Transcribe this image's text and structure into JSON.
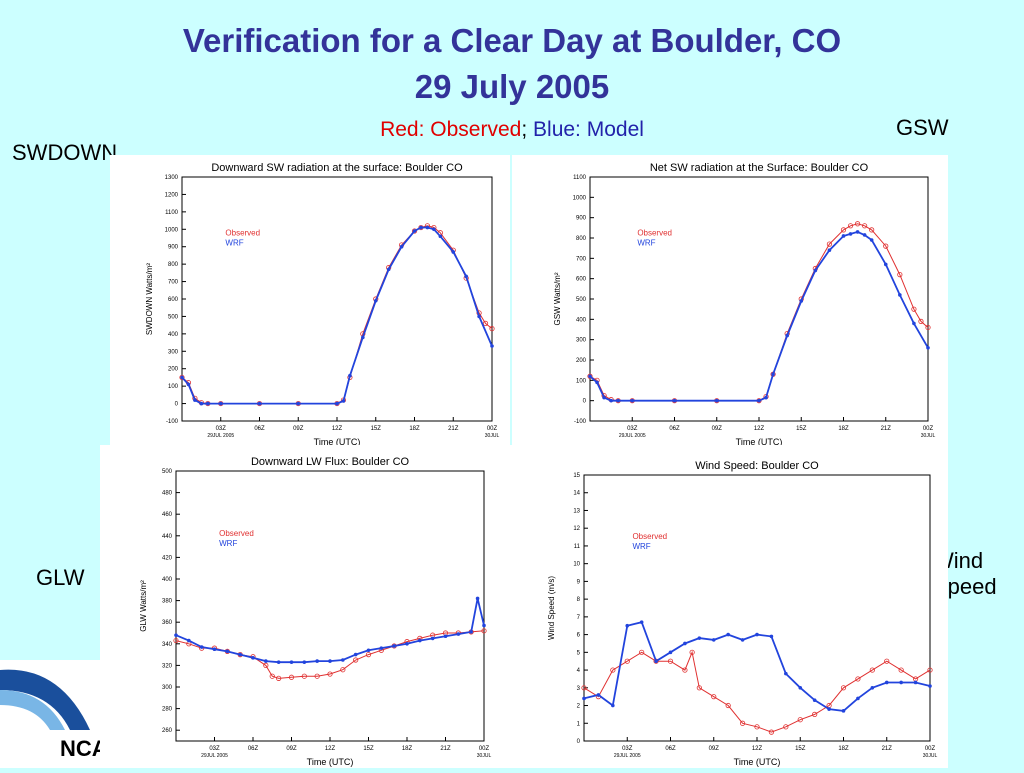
{
  "slide": {
    "title_line1": "Verification for a Clear Day at Boulder, CO",
    "title_line2": "29 July 2005",
    "legend_red": "Red: Observed",
    "legend_sep": ";",
    "legend_blue": "Blue: Model",
    "label_swdown": "SWDOWN",
    "label_gsw": "GSW",
    "label_glw": "GLW",
    "label_wind_1": "Wind",
    "label_wind_2": "Speed",
    "logo_text": "NCA"
  },
  "colors": {
    "observed": "#e03030",
    "model": "#2244dd",
    "title": "#333399",
    "background": "#ccffff"
  },
  "chart_data": [
    {
      "type": "line",
      "title": "Downward SW radiation at the surface: Boulder CO",
      "xlabel": "Time (UTC)",
      "ylabel": "SWDOWN  Watts/m²",
      "ylim": [
        -100,
        1300
      ],
      "yticks": [
        -100,
        0,
        100,
        200,
        300,
        400,
        500,
        600,
        700,
        800,
        900,
        1000,
        1100,
        1200,
        1300
      ],
      "xlim": [
        0,
        24
      ],
      "xticks": [
        3,
        6,
        9,
        12,
        15,
        18,
        21,
        24
      ],
      "xticklabels": [
        "03Z",
        "06Z",
        "09Z",
        "12Z",
        "15Z",
        "18Z",
        "21Z",
        "00Z"
      ],
      "xsublabels": [
        "29JUL 2005",
        "30JUL"
      ],
      "legend": [
        "Observed",
        "WRF"
      ],
      "series": [
        {
          "name": "Observed",
          "x": [
            0,
            0.5,
            1,
            1.5,
            2,
            3,
            6,
            9,
            12,
            12.5,
            13,
            14,
            15,
            16,
            17,
            18,
            18.5,
            19,
            19.5,
            20,
            21,
            22,
            23,
            23.5,
            24
          ],
          "y": [
            150,
            120,
            30,
            5,
            0,
            0,
            0,
            0,
            0,
            20,
            150,
            400,
            600,
            780,
            910,
            990,
            1010,
            1020,
            1010,
            980,
            880,
            720,
            520,
            460,
            430
          ]
        },
        {
          "name": "WRF",
          "x": [
            0,
            0.5,
            1,
            1.5,
            2,
            3,
            6,
            9,
            12,
            12.5,
            13,
            14,
            15,
            16,
            17,
            18,
            18.5,
            19,
            19.5,
            20,
            21,
            22,
            23,
            24
          ],
          "y": [
            150,
            110,
            20,
            0,
            0,
            0,
            0,
            0,
            0,
            15,
            160,
            380,
            590,
            770,
            900,
            990,
            1010,
            1010,
            1000,
            960,
            870,
            730,
            500,
            330
          ]
        }
      ]
    },
    {
      "type": "line",
      "title": "Net SW radiation at the Surface: Boulder CO",
      "xlabel": "Time (UTC)",
      "ylabel": "GSW  Watts/m²",
      "ylim": [
        -100,
        1100
      ],
      "yticks": [
        -100,
        0,
        100,
        200,
        300,
        400,
        500,
        600,
        700,
        800,
        900,
        1000,
        1100
      ],
      "xlim": [
        0,
        24
      ],
      "xticks": [
        3,
        6,
        9,
        12,
        15,
        18,
        21,
        24
      ],
      "xticklabels": [
        "03Z",
        "06Z",
        "09Z",
        "12Z",
        "15Z",
        "18Z",
        "21Z",
        "00Z"
      ],
      "xsublabels": [
        "29JUL 2005",
        "30JUL"
      ],
      "legend": [
        "Observed",
        "WRF"
      ],
      "series": [
        {
          "name": "Observed",
          "x": [
            0,
            0.5,
            1,
            1.5,
            2,
            3,
            6,
            9,
            12,
            12.5,
            13,
            14,
            15,
            16,
            17,
            18,
            18.5,
            19,
            19.5,
            20,
            21,
            22,
            23,
            23.5,
            24
          ],
          "y": [
            120,
            100,
            25,
            5,
            0,
            0,
            0,
            0,
            0,
            20,
            130,
            330,
            500,
            650,
            770,
            840,
            860,
            870,
            860,
            840,
            760,
            620,
            450,
            390,
            360
          ]
        },
        {
          "name": "WRF",
          "x": [
            0,
            0.5,
            1,
            1.5,
            2,
            3,
            6,
            9,
            12,
            12.5,
            13,
            14,
            15,
            16,
            17,
            18,
            18.5,
            19,
            19.5,
            20,
            21,
            22,
            23,
            24
          ],
          "y": [
            120,
            90,
            15,
            0,
            0,
            0,
            0,
            0,
            0,
            15,
            130,
            320,
            490,
            640,
            740,
            810,
            820,
            830,
            815,
            790,
            670,
            520,
            380,
            260
          ]
        }
      ]
    },
    {
      "type": "line",
      "title": "Downward LW Flux: Boulder CO",
      "xlabel": "Time (UTC)",
      "ylabel": "GLW  Watts/m²",
      "ylim": [
        250,
        500
      ],
      "yticks": [
        260,
        280,
        300,
        320,
        340,
        360,
        380,
        400,
        420,
        440,
        460,
        480,
        500
      ],
      "xlim": [
        0,
        24
      ],
      "xticks": [
        3,
        6,
        9,
        12,
        15,
        18,
        21,
        24
      ],
      "xticklabels": [
        "03Z",
        "06Z",
        "09Z",
        "12Z",
        "15Z",
        "18Z",
        "21Z",
        "00Z"
      ],
      "xsublabels": [
        "29JUL 2005",
        "30JUL"
      ],
      "legend": [
        "Observed",
        "WRF"
      ],
      "series": [
        {
          "name": "Observed",
          "x": [
            0,
            1,
            2,
            3,
            4,
            5,
            6,
            7,
            7.5,
            8,
            9,
            10,
            11,
            12,
            13,
            14,
            15,
            16,
            17,
            18,
            19,
            20,
            21,
            22,
            23,
            24
          ],
          "y": [
            343,
            340,
            336,
            336,
            333,
            330,
            328,
            320,
            310,
            308,
            309,
            310,
            310,
            312,
            316,
            325,
            330,
            334,
            338,
            342,
            345,
            348,
            350,
            350,
            351,
            352
          ]
        },
        {
          "name": "WRF",
          "x": [
            0,
            1,
            2,
            3,
            4,
            5,
            6,
            7,
            8,
            9,
            10,
            11,
            12,
            13,
            14,
            15,
            16,
            17,
            18,
            19,
            20,
            21,
            22,
            23,
            23.5,
            24
          ],
          "y": [
            348,
            343,
            337,
            335,
            333,
            330,
            327,
            324,
            323,
            323,
            323,
            324,
            324,
            325,
            330,
            334,
            336,
            338,
            340,
            343,
            345,
            347,
            349,
            351,
            382,
            357
          ]
        }
      ]
    },
    {
      "type": "line",
      "title": "Wind Speed: Boulder CO",
      "xlabel": "Time (UTC)",
      "ylabel": "Wind Speed (m/s)",
      "ylim": [
        0,
        15
      ],
      "yticks": [
        0,
        1,
        2,
        3,
        4,
        5,
        6,
        7,
        8,
        9,
        10,
        11,
        12,
        13,
        14,
        15
      ],
      "xlim": [
        0,
        24
      ],
      "xticks": [
        3,
        6,
        9,
        12,
        15,
        18,
        21,
        24
      ],
      "xticklabels": [
        "03Z",
        "06Z",
        "09Z",
        "12Z",
        "15Z",
        "18Z",
        "21Z",
        "00Z"
      ],
      "xsublabels": [
        "29JUL 2005",
        "30JUL"
      ],
      "legend": [
        "Observed",
        "WRF"
      ],
      "series": [
        {
          "name": "Observed",
          "x": [
            0,
            1,
            2,
            3,
            4,
            5,
            6,
            7,
            7.5,
            8,
            9,
            10,
            11,
            12,
            13,
            14,
            15,
            16,
            17,
            18,
            19,
            20,
            21,
            22,
            23,
            24
          ],
          "y": [
            3.0,
            2.5,
            4.0,
            4.5,
            5.0,
            4.5,
            4.5,
            4.0,
            5.0,
            3.0,
            2.5,
            2.0,
            1.0,
            0.8,
            0.5,
            0.8,
            1.2,
            1.5,
            2.0,
            3.0,
            3.5,
            4.0,
            4.5,
            4.0,
            3.5,
            4.0
          ]
        },
        {
          "name": "WRF",
          "x": [
            0,
            1,
            2,
            3,
            4,
            5,
            6,
            7,
            8,
            9,
            10,
            11,
            12,
            13,
            14,
            15,
            16,
            17,
            18,
            19,
            20,
            21,
            22,
            23,
            24
          ],
          "y": [
            2.4,
            2.6,
            2.0,
            6.5,
            6.7,
            4.5,
            5.0,
            5.5,
            5.8,
            5.7,
            6.0,
            5.7,
            6.0,
            5.9,
            3.8,
            3.0,
            2.3,
            1.8,
            1.7,
            2.4,
            3.0,
            3.3,
            3.3,
            3.3,
            3.1
          ]
        }
      ]
    }
  ]
}
